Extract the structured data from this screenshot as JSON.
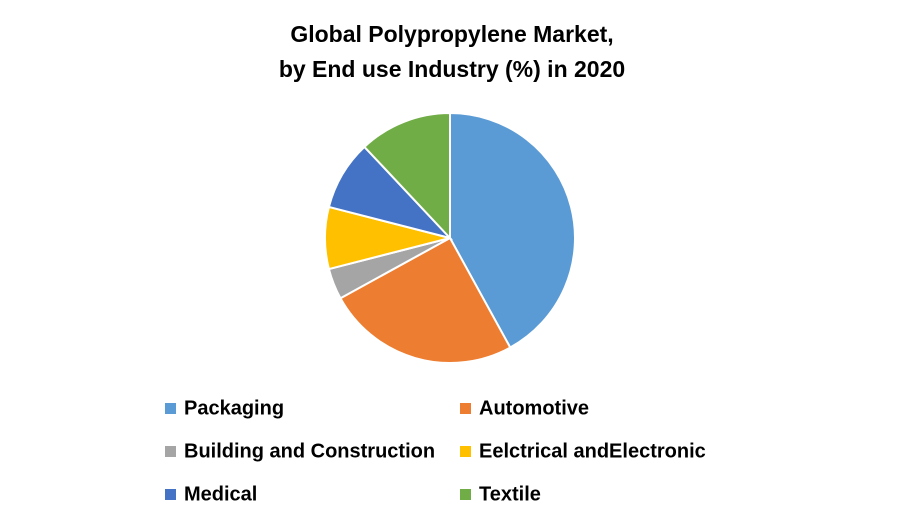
{
  "chart_data": {
    "type": "pie",
    "title": "Global Polypropylene Market,",
    "subtitle": "by End use Industry (%) in 2020",
    "categories": [
      "Packaging",
      "Automotive",
      "Building and Construction",
      "Eelctrical andElectronic",
      "Medical",
      "Textile"
    ],
    "values": [
      42,
      25,
      4,
      8,
      9,
      12
    ],
    "colors": [
      "#5b9bd5",
      "#ed7d31",
      "#a5a5a5",
      "#ffc000",
      "#4472c4",
      "#70ad47"
    ]
  }
}
